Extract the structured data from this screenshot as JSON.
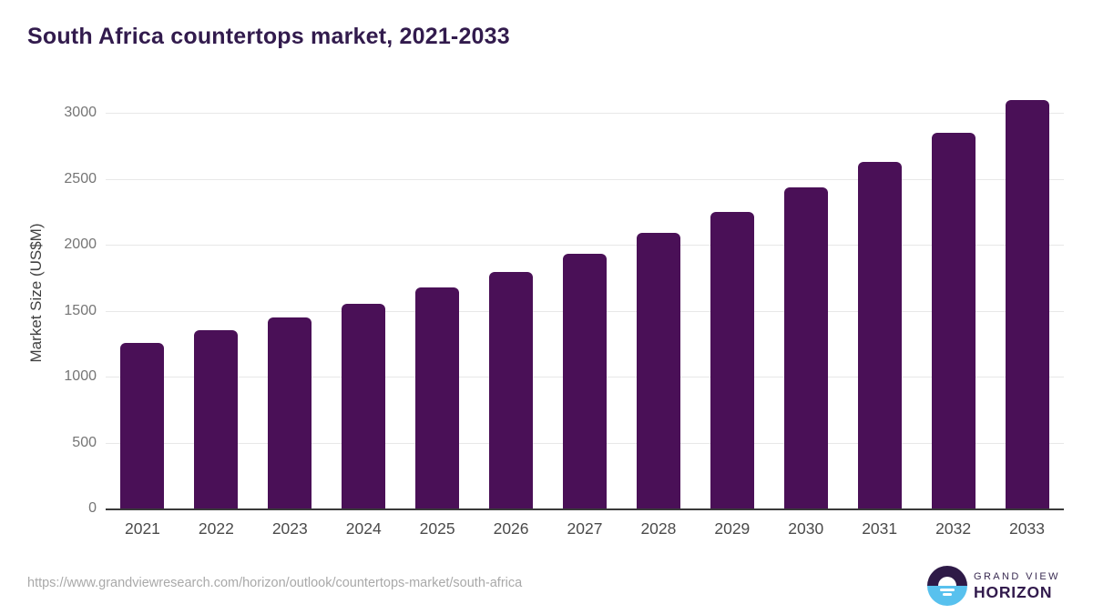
{
  "title": "South Africa countertops market, 2021-2033",
  "chart_data": {
    "type": "bar",
    "categories": [
      "2021",
      "2022",
      "2023",
      "2024",
      "2025",
      "2026",
      "2027",
      "2028",
      "2029",
      "2030",
      "2031",
      "2032",
      "2033"
    ],
    "values": [
      1255,
      1350,
      1445,
      1555,
      1675,
      1795,
      1930,
      2090,
      2250,
      2435,
      2630,
      2845,
      3095
    ],
    "title": "South Africa countertops market, 2021-2033",
    "xlabel": "",
    "ylabel": "Market Size (US$M)",
    "ylim": [
      0,
      3000
    ],
    "ytick_step": 500,
    "grid": "horizontal",
    "legend": "none",
    "bar_color": "#4a1057"
  },
  "footer": {
    "source_url": "https://www.grandviewresearch.com/horizon/outlook/countertops-market/south-africa",
    "logo": {
      "line1": "GRAND VIEW",
      "line2": "HORIZON"
    }
  },
  "colors": {
    "bar": "#4a1057",
    "title_text": "#321b4d",
    "gridline": "#e8e8e8",
    "axis_line": "#3a3a3a",
    "y_tick_text": "#757575",
    "x_tick_text": "#4b4b4b",
    "footer_text": "#a9a9a9",
    "logo_dark": "#2e1a47",
    "logo_blue": "#58c1ee"
  }
}
